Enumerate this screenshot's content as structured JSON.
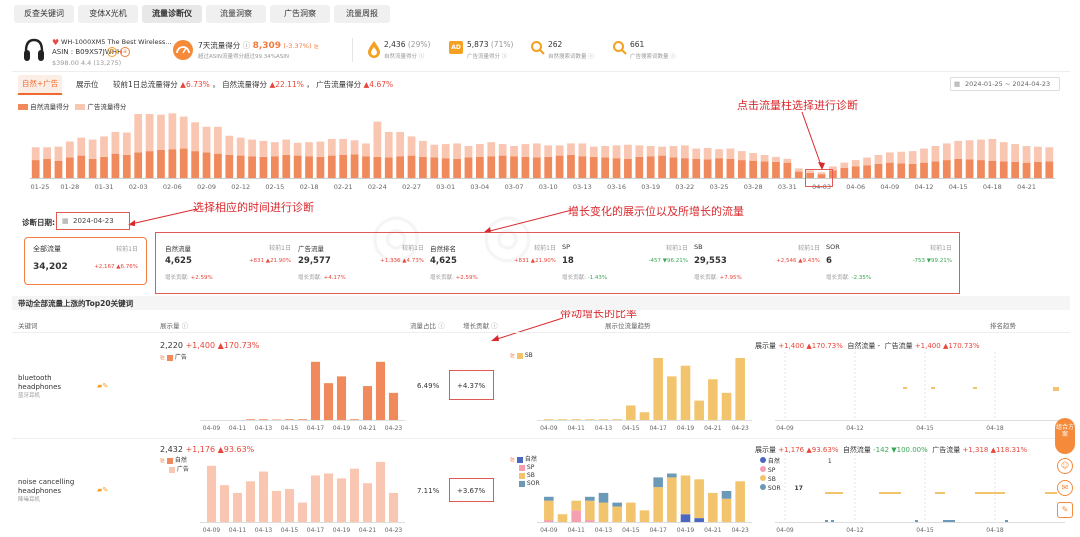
{
  "tabs": [
    "反查关键词",
    "变体X光机",
    "流量诊断仪",
    "流量洞察",
    "广告洞察",
    "流量周报"
  ],
  "product": {
    "title": "WH-1000XM5 The Best Wireless...",
    "asin_label": "ASIN :",
    "asin": "B09XS7JWHH",
    "price_rating": "$398.00 4.4 (13,275)"
  },
  "metrics": {
    "score_label": "7天流量得分",
    "score_value": "8,309",
    "score_change": "(-3.37%)",
    "score_sub": "超过ASIN流量得分超过99.34%ASIN",
    "natural_value": "2,436",
    "natural_pct": "(29%)",
    "natural_label": "自然流量得分",
    "ad_value": "5,873",
    "ad_pct": "(71%)",
    "ad_label": "广告流量得分",
    "nat_kw_value": "262",
    "nat_kw_label": "自然搜索词数量",
    "ad_kw_value": "661",
    "ad_kw_label": "广告搜索词数量"
  },
  "subtabs": {
    "active": "自然+广告",
    "second": "展示位",
    "summary_prefix": "较前1日总流量得分",
    "summary_total": "6.73%",
    "summary_nat_label": "自然流量得分",
    "summary_nat": "22.11%",
    "summary_ad_label": "广告流量得分",
    "summary_ad": "4.67%",
    "date_range": "2024-01-25  ~  2024-04-23"
  },
  "legend": {
    "natural": "自然流量得分",
    "ad": "广告流量得分"
  },
  "x_dates": [
    "01-25",
    "01-28",
    "01-31",
    "02-03",
    "02-06",
    "02-09",
    "02-12",
    "02-15",
    "02-18",
    "02-21",
    "02-24",
    "02-27",
    "03-01",
    "03-04",
    "03-07",
    "03-10",
    "03-13",
    "03-16",
    "03-19",
    "03-22",
    "03-25",
    "03-28",
    "03-31",
    "04-03",
    "04-06",
    "04-09",
    "04-12",
    "04-15",
    "04-18",
    "04-21"
  ],
  "annotations": {
    "click_bar": "点击流量柱选择进行诊断",
    "select_time": "选择相应的时间进行诊断",
    "growth_change": "增长变化的展示位以及所增长的流量",
    "ratio": "带动增长的比率"
  },
  "diag": {
    "label": "诊断日期:",
    "date": "2024-04-23"
  },
  "total_card": {
    "title": "全部流量",
    "cmp": "较前1日",
    "value": "34,202",
    "change": "+2,167 ▲6.76%"
  },
  "cards": [
    {
      "title": "自然流量",
      "cmp": "较前1日",
      "value": "4,625",
      "change": "+831 ▲21.90%",
      "contrib_label": "增长贡献:",
      "contrib": "+2.59%"
    },
    {
      "title": "广告流量",
      "cmp": "较前1日",
      "value": "29,577",
      "change": "+1,336 ▲4.73%",
      "contrib_label": "增长贡献:",
      "contrib": "+4.17%"
    },
    {
      "title": "自然排名",
      "cmp": "较前1日",
      "value": "4,625",
      "change": "+831 ▲21.90%",
      "contrib_label": "增长贡献:",
      "contrib": "+2.59%"
    },
    {
      "title": "SP",
      "cmp": "较前1日",
      "value": "18",
      "change": "-457 ▼96.21%",
      "contrib_label": "增长贡献:",
      "contrib": "-1.43%"
    },
    {
      "title": "SB",
      "cmp": "较前1日",
      "value": "29,553",
      "change": "+2,546 ▲9.43%",
      "contrib_label": "增长贡献:",
      "contrib": "+7.95%"
    },
    {
      "title": "SOR",
      "cmp": "较前1日",
      "value": "6",
      "change": "-753 ▼99.21%",
      "contrib_label": "增长贡献:",
      "contrib": "-2.35%"
    }
  ],
  "section_title": "带动全部流量上涨的Top20关键词",
  "table_headers": {
    "keyword": "关键词",
    "impressions": "展示量",
    "share": "流量占比",
    "contrib": "增长贡献",
    "trend": "展示位流量趋势",
    "rank": "排名趋势"
  },
  "mini_dates": [
    "04-09",
    "04-11",
    "04-13",
    "04-15",
    "04-17",
    "04-19",
    "04-21",
    "04-23"
  ],
  "rank_dates": [
    "04-09",
    "04-12",
    "04-15",
    "04-18"
  ],
  "rows": [
    {
      "keyword": "bluetooth headphones",
      "keyword_cn": "蓝牙耳机",
      "imp_value": "2,220",
      "imp_change": "+1,400 ▲170.73%",
      "legend1": "广告",
      "share": "6.49%",
      "contrib": "+4.37%",
      "trend_legend": [
        "SB"
      ],
      "rank_header": {
        "imp": "展示量",
        "imp_v": "+1,400 ▲170.73%",
        "nat": "自然流量",
        "nat_v": "-",
        "ad": "广告流量",
        "ad_v": "+1,400 ▲170.73%"
      }
    },
    {
      "keyword": "noise cancelling headphones",
      "keyword_cn": "降噪耳机",
      "imp_value": "2,432",
      "imp_change": "+1,176 ▲93.63%",
      "legend1": "自然",
      "legend2": "广告",
      "share": "7.11%",
      "contrib": "+3.67%",
      "trend_legend": [
        "自然",
        "SP",
        "SB",
        "SOR"
      ],
      "rank_header": {
        "imp": "展示量",
        "imp_v": "+1,176 ▲93.63%",
        "nat": "自然流量",
        "nat_v": "-142 ▼100.00%",
        "ad": "广告流量",
        "ad_v": "+1,318 ▲118.31%"
      },
      "rank_legend": [
        "自然",
        "SP",
        "SB",
        "SOR"
      ],
      "rank_legend_vals": [
        "1",
        "",
        "",
        "17"
      ]
    }
  ],
  "side_buttons": {
    "top": "组合方案"
  },
  "colors": {
    "natural": "#f08a5d",
    "ad": "#f9c6b2",
    "sb": "#f2c46d",
    "sp": "#f5a0b0",
    "sor": "#6b9ab8",
    "nat_dark": "#4a68c0",
    "red": "#e8463a",
    "green": "#3aa655"
  },
  "chart_data": [
    {
      "type": "bar",
      "title": "",
      "x": [
        "01-25",
        "01-26",
        "01-27",
        "01-28",
        "01-29",
        "01-30",
        "01-31",
        "02-01",
        "02-02",
        "02-03",
        "02-04",
        "02-05",
        "02-06",
        "02-07",
        "02-08",
        "02-09",
        "02-10",
        "02-11",
        "02-12",
        "02-13",
        "02-14",
        "02-15",
        "02-16",
        "02-17",
        "02-18",
        "02-19",
        "02-20",
        "02-21",
        "02-22",
        "02-23",
        "02-24",
        "02-25",
        "02-26",
        "02-27",
        "02-28",
        "02-29",
        "03-01",
        "03-02",
        "03-03",
        "03-04",
        "03-05",
        "03-06",
        "03-07",
        "03-08",
        "03-09",
        "03-10",
        "03-11",
        "03-12",
        "03-13",
        "03-14",
        "03-15",
        "03-16",
        "03-17",
        "03-18",
        "03-19",
        "03-20",
        "03-21",
        "03-22",
        "03-23",
        "03-24",
        "03-25",
        "03-26",
        "03-27",
        "03-28",
        "03-29",
        "03-30",
        "03-31",
        "04-01",
        "04-02",
        "04-03",
        "04-04",
        "04-05",
        "04-06",
        "04-07",
        "04-08",
        "04-09",
        "04-10",
        "04-11",
        "04-12",
        "04-13",
        "04-14",
        "04-15",
        "04-16",
        "04-17",
        "04-18",
        "04-19",
        "04-20",
        "04-21",
        "04-22",
        "04-23"
      ],
      "series": [
        {
          "name": "自然流量得分",
          "values": [
            28,
            30,
            27,
            32,
            35,
            30,
            33,
            38,
            36,
            40,
            42,
            44,
            45,
            46,
            42,
            40,
            38,
            36,
            35,
            34,
            33,
            34,
            36,
            35,
            34,
            33,
            35,
            36,
            37,
            34,
            33,
            32,
            34,
            35,
            33,
            32,
            31,
            30,
            32,
            33,
            34,
            35,
            34,
            33,
            32,
            33,
            35,
            36,
            34,
            33,
            32,
            31,
            30,
            33,
            34,
            35,
            32,
            31,
            30,
            29,
            31,
            30,
            28,
            27,
            26,
            25,
            24,
            10,
            8,
            6,
            12,
            16,
            18,
            20,
            22,
            24,
            23,
            22,
            24,
            26,
            28,
            30,
            29,
            28,
            27,
            26,
            25,
            24,
            25,
            26
          ]
        },
        {
          "name": "广告流量得分",
          "values": [
            20,
            18,
            22,
            25,
            28,
            30,
            32,
            34,
            35,
            60,
            58,
            55,
            56,
            50,
            45,
            40,
            42,
            30,
            28,
            26,
            25,
            22,
            24,
            20,
            22,
            24,
            26,
            25,
            22,
            20,
            55,
            40,
            38,
            30,
            25,
            20,
            22,
            24,
            18,
            20,
            22,
            18,
            16,
            20,
            22,
            18,
            16,
            18,
            20,
            16,
            18,
            20,
            22,
            18,
            16,
            14,
            18,
            20,
            16,
            18,
            14,
            16,
            14,
            12,
            10,
            8,
            6,
            5,
            4,
            3,
            6,
            8,
            10,
            12,
            14,
            16,
            18,
            20,
            22,
            24,
            26,
            28,
            30,
            32,
            34,
            30,
            28,
            26,
            24,
            22
          ]
        }
      ]
    }
  ]
}
